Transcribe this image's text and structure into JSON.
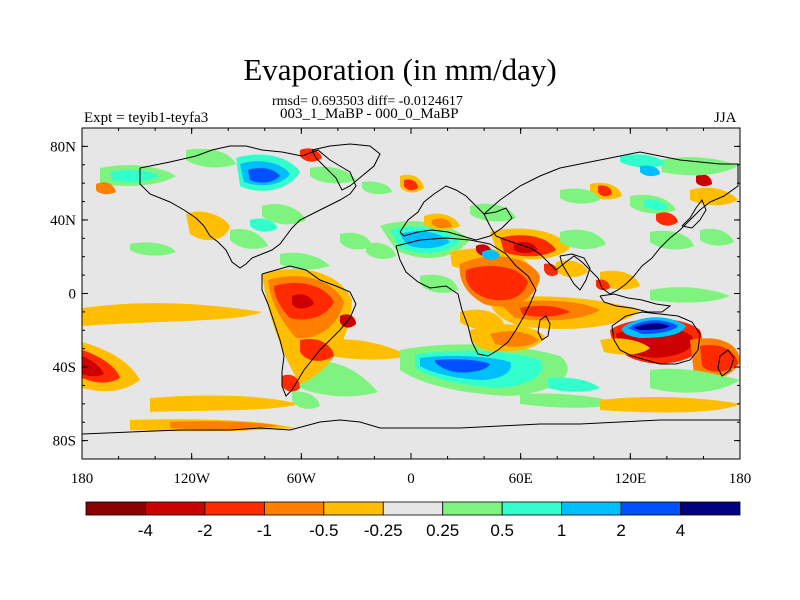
{
  "title": "Evaporation (in mm/day)",
  "stats": "rmsd= 0.693503 diff= -0.0124617",
  "experiment": "Expt = teyib1-teyfa3",
  "period": "003_1_MaBP - 000_0_MaBP",
  "season": "JJA",
  "map": {
    "background_color": "#e6e6e6",
    "coastline_color": "#000000",
    "lon_ticks": [
      "180",
      "120W",
      "60W",
      "0",
      "60E",
      "120E",
      "180"
    ],
    "lat_ticks": [
      "80N",
      "40N",
      "0",
      "40S",
      "80S"
    ]
  },
  "colorbar": {
    "colors": [
      "#8b0000",
      "#cc0000",
      "#ff2a00",
      "#ff7f00",
      "#ffbf00",
      "#e6e6e6",
      "#7ff37f",
      "#33ffcc",
      "#00bfff",
      "#0050ff",
      "#000080"
    ],
    "labels": [
      "-4",
      "-2",
      "-1",
      "-0.5",
      "-0.25",
      "0.25",
      "0.5",
      "1",
      "2",
      "4"
    ]
  }
}
